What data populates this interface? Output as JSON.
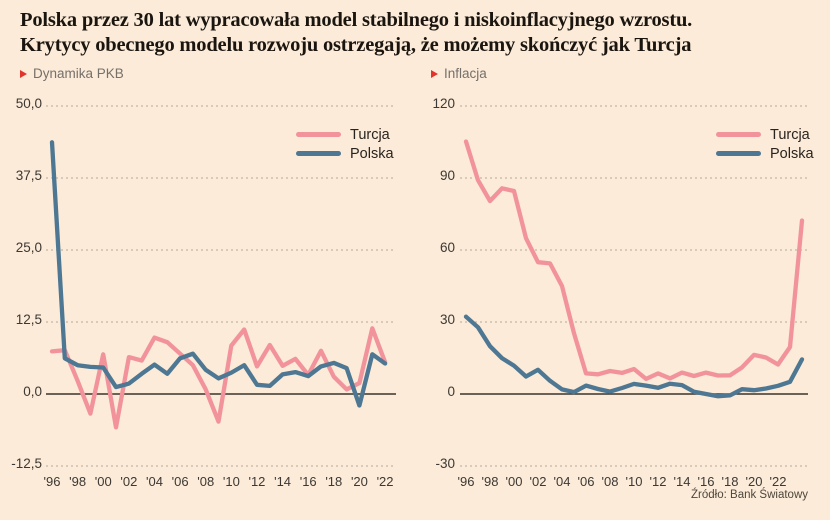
{
  "title": {
    "line1": "Polska przez 30 lat wypracowała model stabilnego i niskoinflacyjnego wzrostu.",
    "line2": "Krytycy obecnego modelu rozwoju ostrzegają, że możemy skończyć jak Turcja"
  },
  "source": "Źródło: Bank Światowy",
  "colors": {
    "background": "#fbebd8",
    "turcja": "#f2939c",
    "polska": "#4d7792",
    "accent_red": "#e2342b",
    "grid": "#b6aa9c",
    "zero_line": "#3b352c",
    "axis_text": "#3c3833",
    "label_gray": "#76706a",
    "title_text": "#1b1510"
  },
  "legend": {
    "items": [
      {
        "label": "Turcja",
        "color_key": "turcja"
      },
      {
        "label": "Polska",
        "color_key": "polska"
      }
    ]
  },
  "chart_data": [
    {
      "type": "line",
      "title": "Dynamika PKB",
      "grid": "dashed",
      "legend_position": "top-right",
      "x_tick_labels": [
        "'96",
        "'98",
        "'00",
        "'02",
        "'04",
        "'06",
        "'08",
        "'10",
        "'12",
        "'14",
        "'16",
        "'18",
        "'20",
        "'22"
      ],
      "x_ticks_every": 2,
      "y_tick_labels": [
        "50,0",
        "37,5",
        "25,0",
        "12,5",
        "0,0",
        "-12,5"
      ],
      "y_tick_values": [
        50,
        37.5,
        25,
        12.5,
        0,
        -12.5
      ],
      "ylim": [
        -12.5,
        50
      ],
      "zero_line": 0,
      "series": [
        {
          "name": "Turcja",
          "color_key": "turcja",
          "values": [
            7.4,
            7.6,
            2.3,
            -3.4,
            6.9,
            -5.8,
            6.4,
            5.8,
            9.8,
            9.0,
            7.0,
            5.0,
            0.8,
            -4.8,
            8.4,
            11.2,
            4.8,
            8.5,
            4.9,
            6.1,
            3.3,
            7.5,
            3.0,
            0.8,
            1.9,
            11.4,
            5.5
          ]
        },
        {
          "name": "Polska",
          "color_key": "polska",
          "values": [
            43.7,
            6.2,
            5.0,
            4.7,
            4.6,
            1.2,
            1.8,
            3.5,
            5.1,
            3.5,
            6.2,
            7.0,
            4.2,
            2.7,
            3.7,
            5.0,
            1.6,
            1.4,
            3.4,
            3.8,
            3.1,
            4.8,
            5.4,
            4.5,
            -2.0,
            6.9,
            5.3
          ]
        }
      ]
    },
    {
      "type": "line",
      "title": "Inflacja",
      "grid": "dashed",
      "legend_position": "top-right",
      "x_tick_labels": [
        "'96",
        "'98",
        "'00",
        "'02",
        "'04",
        "'06",
        "'08",
        "'10",
        "'12",
        "'14",
        "'16",
        "'18",
        "'20",
        "'22"
      ],
      "x_ticks_every": 2,
      "y_tick_labels": [
        "120",
        "90",
        "60",
        "30",
        "0",
        "-30"
      ],
      "y_tick_values": [
        120,
        90,
        60,
        30,
        0,
        -30
      ],
      "ylim": [
        -30,
        120
      ],
      "zero_line": 0,
      "series": [
        {
          "name": "Turcja",
          "color_key": "turcja",
          "values": [
            105.2,
            89.1,
            80.4,
            85.7,
            84.6,
            64.9,
            54.9,
            54.4,
            45.0,
            25.3,
            8.6,
            8.2,
            9.6,
            8.8,
            10.4,
            6.3,
            8.6,
            6.5,
            8.9,
            7.5,
            8.9,
            7.7,
            7.8,
            11.1,
            16.3,
            15.2,
            12.3,
            19.6,
            72.3
          ]
        },
        {
          "name": "Polska",
          "color_key": "polska",
          "values": [
            32.2,
            27.8,
            19.9,
            14.9,
            11.8,
            7.3,
            10.1,
            5.5,
            1.9,
            0.8,
            3.5,
            2.1,
            1.0,
            2.5,
            4.2,
            3.5,
            2.6,
            4.3,
            3.7,
            0.9,
            0.0,
            -0.9,
            -0.6,
            2.0,
            1.6,
            2.3,
            3.4,
            5.1,
            14.4
          ]
        }
      ]
    }
  ]
}
